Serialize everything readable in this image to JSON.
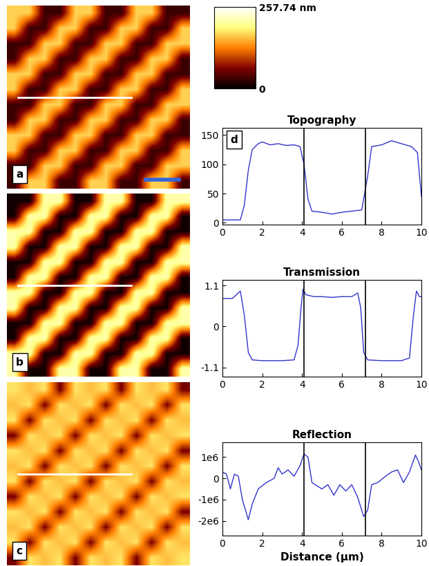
{
  "chart_data": [
    {
      "type": "image",
      "label": "a",
      "cells": [
        [
          170,
          170,
          30,
          30,
          170,
          170,
          30,
          30,
          170,
          170,
          30,
          30
        ],
        [
          170,
          30,
          30,
          170,
          170,
          30,
          30,
          170,
          170,
          30,
          30,
          170
        ],
        [
          30,
          30,
          170,
          170,
          30,
          30,
          170,
          170,
          30,
          30,
          170,
          170
        ],
        [
          30,
          170,
          170,
          30,
          30,
          170,
          170,
          30,
          30,
          170,
          170,
          30
        ],
        [
          170,
          170,
          30,
          30,
          170,
          170,
          30,
          30,
          170,
          170,
          30,
          30
        ],
        [
          170,
          30,
          30,
          170,
          170,
          30,
          30,
          170,
          170,
          30,
          30,
          170
        ],
        [
          30,
          30,
          170,
          170,
          30,
          30,
          170,
          170,
          30,
          30,
          170,
          170
        ],
        [
          30,
          170,
          170,
          30,
          30,
          170,
          170,
          30,
          30,
          170,
          170,
          30
        ],
        [
          170,
          170,
          30,
          30,
          170,
          170,
          30,
          30,
          170,
          170,
          30,
          30
        ],
        [
          170,
          30,
          30,
          170,
          170,
          30,
          30,
          170,
          170,
          30,
          30,
          170
        ],
        [
          30,
          30,
          170,
          170,
          30,
          30,
          170,
          170,
          30,
          30,
          170,
          170
        ],
        [
          30,
          170,
          170,
          30,
          30,
          170,
          170,
          30,
          30,
          170,
          170,
          30
        ]
      ],
      "colorbar": {
        "range": [
          0,
          257.74
        ],
        "ticks": [
          0,
          {
            "value": 257.74,
            "label": "257.74 nm"
          }
        ]
      }
    },
    {
      "type": "image",
      "label": "b",
      "cells": [
        [
          10,
          10,
          215,
          215,
          10,
          10,
          215,
          215,
          10,
          10,
          215,
          215
        ],
        [
          10,
          215,
          215,
          10,
          10,
          215,
          215,
          10,
          10,
          215,
          215,
          10
        ],
        [
          215,
          215,
          10,
          10,
          215,
          215,
          10,
          10,
          215,
          215,
          10,
          10
        ],
        [
          215,
          10,
          10,
          215,
          215,
          10,
          10,
          215,
          215,
          10,
          10,
          215
        ],
        [
          10,
          10,
          215,
          215,
          10,
          10,
          215,
          215,
          10,
          10,
          215,
          215
        ],
        [
          10,
          215,
          215,
          10,
          10,
          215,
          215,
          10,
          10,
          215,
          215,
          10
        ],
        [
          215,
          215,
          10,
          10,
          215,
          215,
          10,
          10,
          215,
          215,
          10,
          10
        ],
        [
          215,
          10,
          10,
          215,
          215,
          10,
          10,
          215,
          215,
          10,
          10,
          215
        ],
        [
          10,
          10,
          215,
          215,
          10,
          10,
          215,
          215,
          10,
          10,
          215,
          215
        ],
        [
          10,
          215,
          215,
          10,
          10,
          215,
          215,
          10,
          10,
          215,
          215,
          10
        ],
        [
          215,
          215,
          10,
          10,
          215,
          215,
          10,
          10,
          215,
          215,
          10,
          10
        ],
        [
          215,
          10,
          10,
          215,
          215,
          10,
          10,
          215,
          215,
          10,
          10,
          215
        ]
      ]
    },
    {
      "type": "image",
      "label": "c",
      "cells": [
        [
          180,
          160,
          180,
          60,
          180,
          160,
          180,
          60,
          180,
          160,
          180,
          60
        ],
        [
          160,
          180,
          60,
          180,
          160,
          180,
          60,
          180,
          160,
          180,
          60,
          180
        ],
        [
          180,
          60,
          180,
          160,
          180,
          60,
          180,
          160,
          180,
          60,
          180,
          160
        ],
        [
          60,
          180,
          160,
          180,
          60,
          180,
          160,
          180,
          60,
          180,
          160,
          180
        ],
        [
          180,
          160,
          180,
          60,
          180,
          160,
          180,
          60,
          180,
          160,
          180,
          60
        ],
        [
          160,
          180,
          60,
          180,
          160,
          180,
          60,
          180,
          160,
          180,
          60,
          180
        ],
        [
          180,
          60,
          180,
          160,
          180,
          60,
          180,
          160,
          180,
          60,
          180,
          160
        ],
        [
          60,
          180,
          160,
          180,
          60,
          180,
          160,
          180,
          60,
          180,
          160,
          180
        ],
        [
          180,
          160,
          180,
          60,
          180,
          160,
          180,
          60,
          180,
          160,
          180,
          60
        ],
        [
          160,
          180,
          60,
          180,
          160,
          180,
          60,
          180,
          160,
          180,
          60,
          180
        ],
        [
          180,
          60,
          180,
          160,
          180,
          60,
          180,
          160,
          180,
          60,
          180,
          160
        ],
        [
          60,
          180,
          160,
          180,
          60,
          180,
          160,
          180,
          60,
          180,
          160,
          180
        ]
      ]
    },
    {
      "type": "line",
      "title": "Topography",
      "label": "d",
      "color": "#3333cc",
      "x": [
        0,
        0.5,
        0.9,
        1.1,
        1.3,
        1.5,
        1.8,
        2.0,
        2.4,
        2.8,
        3.2,
        3.6,
        3.9,
        4.1,
        4.3,
        4.5,
        5.0,
        5.5,
        6.0,
        6.5,
        7.0,
        7.3,
        7.5,
        8.0,
        8.5,
        9.0,
        9.5,
        9.8,
        10.0
      ],
      "values": [
        5,
        5,
        5,
        30,
        90,
        125,
        135,
        138,
        133,
        135,
        132,
        133,
        130,
        100,
        40,
        20,
        18,
        15,
        18,
        20,
        22,
        80,
        130,
        133,
        140,
        135,
        130,
        120,
        45
      ],
      "xlim": [
        0,
        10
      ],
      "xticks": [
        0,
        2,
        4,
        6,
        8,
        10
      ],
      "ylim": [
        -3,
        162
      ],
      "yticks": [
        0,
        50,
        100,
        150
      ],
      "vertical_lines": [
        4.1,
        7.2
      ]
    },
    {
      "type": "line",
      "title": "Transmission",
      "color": "#3333cc",
      "x": [
        0,
        0.5,
        0.8,
        0.9,
        1.1,
        1.3,
        1.5,
        2.0,
        3.0,
        3.6,
        3.8,
        3.95,
        4.05,
        4.2,
        4.6,
        5.0,
        5.5,
        6.0,
        6.5,
        6.8,
        6.95,
        7.1,
        7.3,
        8.0,
        9.0,
        9.4,
        9.6,
        9.75,
        9.9,
        10.0
      ],
      "values": [
        0.75,
        0.75,
        0.9,
        0.95,
        0.3,
        -0.7,
        -0.9,
        -0.92,
        -0.92,
        -0.9,
        -0.5,
        0.5,
        1.0,
        0.85,
        0.8,
        0.8,
        0.78,
        0.8,
        0.8,
        0.9,
        0.5,
        -0.7,
        -0.9,
        -0.92,
        -0.92,
        -0.85,
        0.3,
        0.95,
        0.8,
        0.8
      ],
      "xlim": [
        0,
        10
      ],
      "xticks": [
        0,
        2,
        4,
        6,
        8,
        10
      ],
      "ylim": [
        -1.35,
        1.25
      ],
      "yticks": [
        -1.1,
        0,
        1.1
      ],
      "vertical_lines": [
        4.1,
        7.2
      ]
    },
    {
      "type": "line",
      "title": "Reflection",
      "xlabel": "Distance (µm)",
      "color": "#3333cc",
      "x": [
        0,
        0.2,
        0.4,
        0.6,
        0.8,
        1.0,
        1.3,
        1.5,
        1.8,
        2.2,
        2.6,
        2.8,
        3.0,
        3.3,
        3.6,
        3.9,
        4.1,
        4.3,
        4.5,
        5.0,
        5.3,
        5.6,
        5.9,
        6.2,
        6.5,
        6.8,
        7.1,
        7.3,
        7.5,
        7.8,
        8.2,
        8.5,
        8.8,
        9.1,
        9.4,
        9.7,
        9.85,
        10.0
      ],
      "values": [
        300000,
        200000,
        -500000,
        200000,
        100000,
        -1000000,
        -1950000,
        -1200000,
        -500000,
        -200000,
        0,
        500000,
        200000,
        400000,
        100000,
        600000,
        1150000,
        1000000,
        -200000,
        -500000,
        -300000,
        -800000,
        -300000,
        -600000,
        -300000,
        -900000,
        -1800000,
        -1500000,
        -300000,
        -200000,
        100000,
        300000,
        400000,
        -200000,
        300000,
        1100000,
        800000,
        400000
      ],
      "xlim": [
        0,
        10
      ],
      "xticks": [
        0,
        2,
        4,
        6,
        8,
        10
      ],
      "ylim": [
        -2700000,
        1700000
      ],
      "yticks": [
        {
          "value": 1000000,
          "label": "1e6"
        },
        0,
        {
          "value": -1000000,
          "label": "-1e6"
        },
        {
          "value": -2000000,
          "label": "-2e6"
        }
      ],
      "vertical_lines": [
        4.1,
        7.2
      ]
    }
  ]
}
